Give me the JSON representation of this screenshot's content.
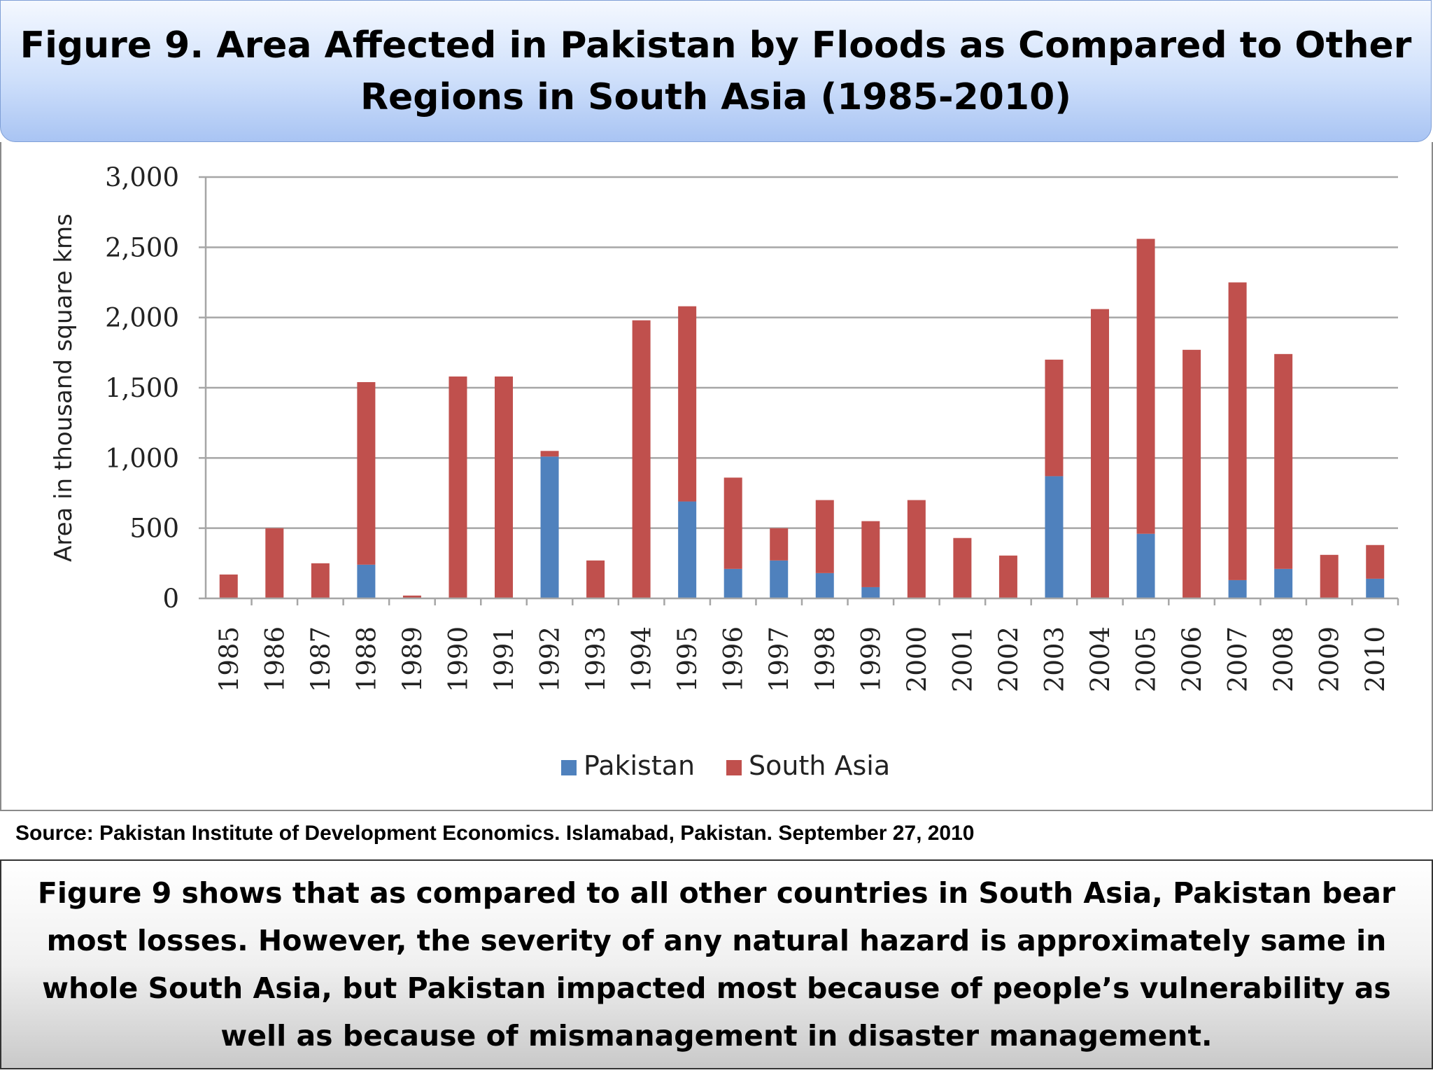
{
  "header": {
    "title_line1": "Figure 9. Area Affected in Pakistan by Floods as Compared to Other",
    "title_line2": "Regions in South Asia (1985-2010)"
  },
  "source": "Source: Pakistan Institute of Development Economics. Islamabad, Pakistan. September 27, 2010",
  "caption": "Figure 9 shows that as compared to all other countries in South Asia, Pakistan bear most losses. However, the severity of any natural hazard is approximately same in whole South Asia, but Pakistan impacted most because of people’s vulnerability as well as because of mismanagement in disaster management.",
  "colors": {
    "pakistan": "#4f81bd",
    "south_asia": "#c0504d",
    "grid": "#a6a6a6"
  },
  "chart_data": {
    "type": "bar",
    "stacked": true,
    "title": "Figure 9. Area Affected in Pakistan by Floods as Compared to Other Regions in South Asia (1985-2010)",
    "xlabel": "",
    "ylabel": "Area in thousand square kms",
    "ylim": [
      0,
      3000
    ],
    "yticks": [
      0,
      500,
      1000,
      1500,
      2000,
      2500,
      3000
    ],
    "ytick_labels": [
      "0",
      "500",
      "1,000",
      "1,500",
      "2,000",
      "2,500",
      "3,000"
    ],
    "grid": true,
    "legend_position": "bottom",
    "categories": [
      "1985",
      "1986",
      "1987",
      "1988",
      "1989",
      "1990",
      "1991",
      "1992",
      "1993",
      "1994",
      "1995",
      "1996",
      "1997",
      "1998",
      "1999",
      "2000",
      "2001",
      "2002",
      "2003",
      "2004",
      "2005",
      "2006",
      "2007",
      "2008",
      "2009",
      "2010"
    ],
    "series": [
      {
        "name": "Pakistan",
        "values": [
          0,
          0,
          0,
          240,
          0,
          0,
          0,
          1010,
          0,
          0,
          690,
          210,
          270,
          180,
          80,
          0,
          0,
          0,
          870,
          0,
          460,
          0,
          130,
          210,
          0,
          140
        ]
      },
      {
        "name": "South Asia",
        "values": [
          170,
          500,
          250,
          1300,
          20,
          1580,
          1580,
          40,
          270,
          1980,
          1390,
          650,
          230,
          520,
          470,
          700,
          430,
          305,
          830,
          2060,
          2100,
          1770,
          2120,
          1530,
          310,
          240
        ]
      }
    ]
  }
}
